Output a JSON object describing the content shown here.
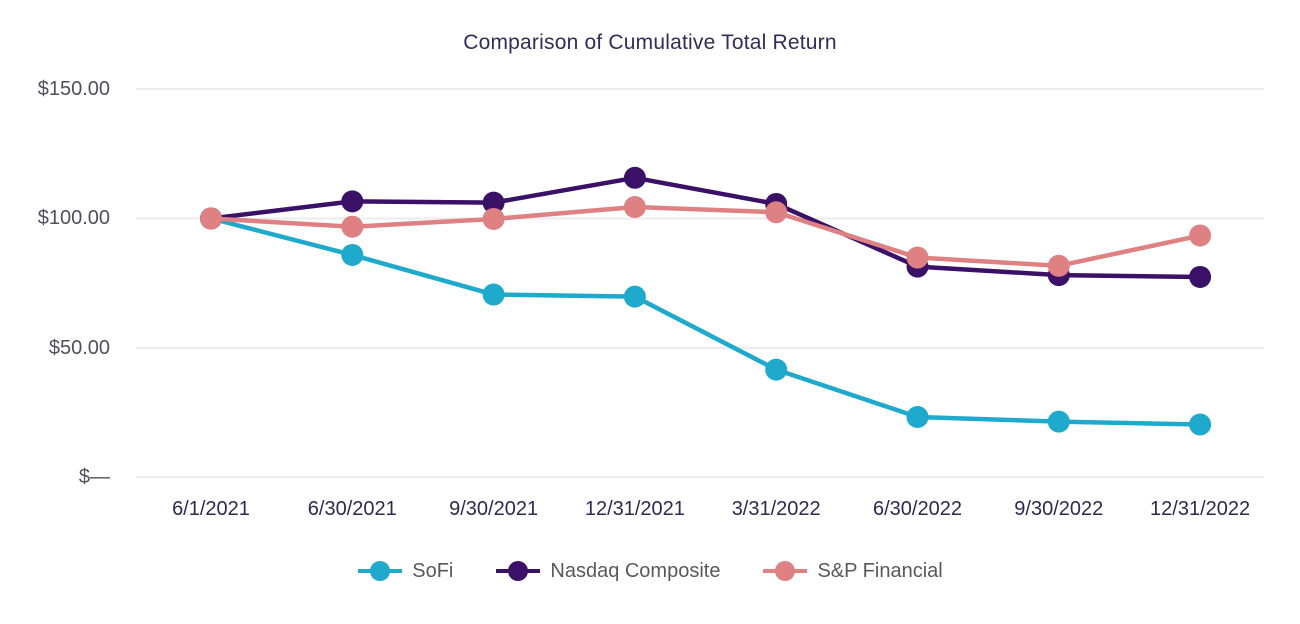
{
  "chart_data": {
    "type": "line",
    "title": "Comparison of Cumulative Total Return",
    "x": [
      "6/1/2021",
      "6/30/2021",
      "9/30/2021",
      "12/31/2021",
      "3/31/2022",
      "6/30/2022",
      "9/30/2022",
      "12/31/2022"
    ],
    "series": [
      {
        "name": "SoFi",
        "color": "#1EA9CD",
        "values": [
          100,
          85.9,
          70.6,
          69.8,
          41.6,
          23.3,
          21.5,
          20.4
        ]
      },
      {
        "name": "Nasdaq Composite",
        "color": "#3A1166",
        "values": [
          100,
          106.6,
          106.1,
          115.7,
          105.6,
          81.4,
          78.1,
          77.4
        ]
      },
      {
        "name": "S&P Financial",
        "color": "#DF8082",
        "values": [
          100,
          96.8,
          99.8,
          104.4,
          102.4,
          84.9,
          81.7,
          93.4
        ]
      }
    ],
    "y_ticks": [
      {
        "value": 150,
        "label": "$150.00"
      },
      {
        "value": 100,
        "label": "$100.00"
      },
      {
        "value": 50,
        "label": "$50.00"
      },
      {
        "value": 0,
        "label": "$—"
      }
    ],
    "ylim": [
      0,
      150
    ],
    "grid": true,
    "legend_position": "bottom",
    "colors": {
      "title": "#312D58",
      "axis_x_labels": "#2E2951",
      "axis_y_labels": "#504F5B",
      "legend_text": "#595959",
      "gridline": "#ECECEC",
      "background": "#FFFFFF"
    }
  }
}
